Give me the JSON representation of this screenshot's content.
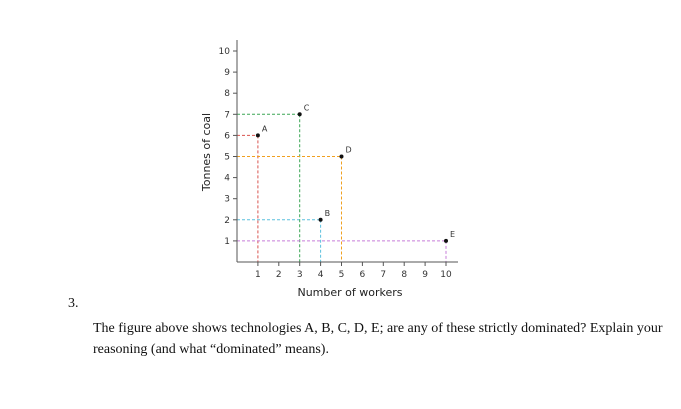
{
  "chart_data": {
    "type": "scatter",
    "xlabel": "Number of workers",
    "ylabel": "Tonnes of coal",
    "xlim": [
      0,
      10
    ],
    "ylim": [
      0,
      10
    ],
    "xticks": [
      1,
      2,
      3,
      4,
      5,
      6,
      7,
      8,
      9,
      10
    ],
    "yticks": [
      1,
      2,
      3,
      4,
      5,
      6,
      7,
      8,
      9,
      10
    ],
    "grid": false,
    "points": [
      {
        "label": "A",
        "x": 1,
        "y": 6,
        "color": "#d9534f"
      },
      {
        "label": "B",
        "x": 4,
        "y": 2,
        "color": "#5bc0de"
      },
      {
        "label": "C",
        "x": 3,
        "y": 7,
        "color": "#3aa655"
      },
      {
        "label": "D",
        "x": 5,
        "y": 5,
        "color": "#f0a020"
      },
      {
        "label": "E",
        "x": 10,
        "y": 1,
        "color": "#c77dd9"
      }
    ]
  },
  "question": {
    "number": "3.",
    "text": "The figure above shows technologies A, B, C, D, E; are any of these strictly dominated? Explain your reasoning (and what “dominated” means)."
  }
}
